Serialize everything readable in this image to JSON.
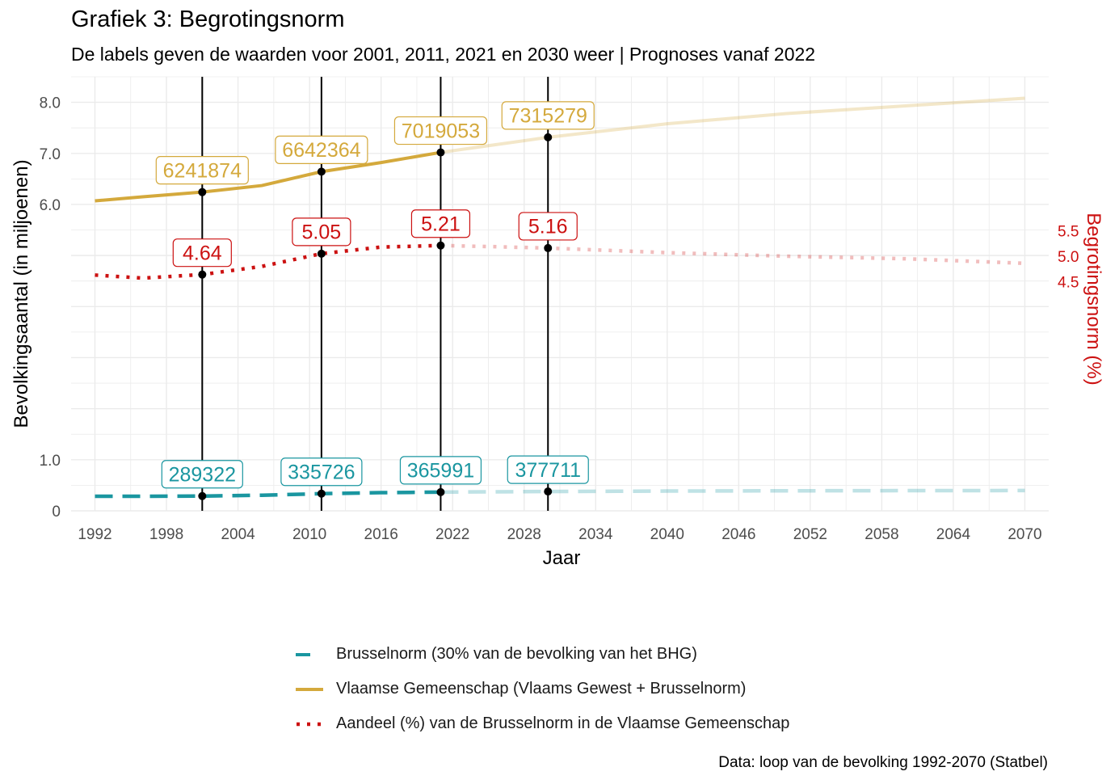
{
  "title": "Grafiek 3: Begrotingsnorm",
  "subtitle": "De labels geven de waarden voor 2001, 2011, 2021 en 2030 weer | Prognoses vanaf 2022",
  "caption": "Data: loop van de bevolking 1992-2070 (Statbel)",
  "colors": {
    "brussel": "#1a96a0",
    "vlaams": "#d4a93c",
    "aandeel": "#cc1111",
    "vline": "#000000",
    "grid": "#ebebeb"
  },
  "legend": [
    {
      "key": "brussel",
      "label": "Brusselnorm (30% van de bevolking van het BHG)",
      "style": "dashed"
    },
    {
      "key": "vlaams",
      "label": "Vlaamse Gemeenschap (Vlaams Gewest + Brusselnorm)",
      "style": "solid"
    },
    {
      "key": "aandeel",
      "label": "Aandeel (%) van de Brusselnorm in de Vlaamse Gemeenschap",
      "style": "dotted"
    }
  ],
  "chart_data": {
    "type": "line",
    "xlabel": "Jaar",
    "ylabel": "Bevolkingsaantal (in miljoenen)",
    "y2label": "Begrotingsnorm (%)",
    "xlim": [
      1990,
      2072
    ],
    "ylim": [
      0,
      8.5
    ],
    "x_ticks": [
      1992,
      1998,
      2004,
      2010,
      2016,
      2022,
      2028,
      2034,
      2040,
      2046,
      2052,
      2058,
      2064,
      2070
    ],
    "y_ticks": [
      0,
      1.0,
      6.0,
      7.0,
      8.0
    ],
    "y_tick_labels": [
      "0",
      "1.0",
      "6.0",
      "7.0",
      "8.0"
    ],
    "y2_ticks": [
      4.5,
      5.0,
      5.5
    ],
    "y2_tick_labels": [
      "4.5",
      "5.0",
      "5.5"
    ],
    "projection_start": 2022,
    "highlight_years": [
      2001,
      2011,
      2021,
      2030
    ],
    "grid": true,
    "legend_position": "bottom",
    "series": [
      {
        "key": "brussel",
        "name": "Brusselnorm (30% van de bevolking van het BHG)",
        "axis": "left",
        "style": "dashed",
        "x": [
          1992,
          1996,
          2001,
          2006,
          2011,
          2016,
          2021,
          2025,
          2030,
          2040,
          2050,
          2060,
          2070
        ],
        "y": [
          0.285,
          0.285,
          0.289,
          0.305,
          0.336,
          0.356,
          0.366,
          0.372,
          0.378,
          0.387,
          0.392,
          0.395,
          0.397
        ]
      },
      {
        "key": "vlaams",
        "name": "Vlaamse Gemeenschap (Vlaams Gewest + Brusselnorm)",
        "axis": "left",
        "style": "solid",
        "x": [
          1992,
          1996,
          2001,
          2006,
          2011,
          2016,
          2021,
          2025,
          2030,
          2040,
          2050,
          2060,
          2070
        ],
        "y": [
          6.07,
          6.15,
          6.242,
          6.37,
          6.642,
          6.82,
          7.019,
          7.15,
          7.315,
          7.58,
          7.78,
          7.93,
          8.08
        ]
      },
      {
        "key": "aandeel",
        "name": "Aandeel (%) van de Brusselnorm in de Vlaamse Gemeenschap",
        "axis": "right",
        "style": "dotted",
        "x": [
          1992,
          1996,
          2001,
          2006,
          2011,
          2016,
          2021,
          2025,
          2030,
          2040,
          2050,
          2060,
          2070
        ],
        "y": [
          4.63,
          4.57,
          4.64,
          4.8,
          5.05,
          5.18,
          5.21,
          5.19,
          5.16,
          5.07,
          5.0,
          4.95,
          4.86
        ]
      }
    ],
    "labels": [
      {
        "series": "vlaams",
        "x": 2001,
        "y": 6.242,
        "text": "6241874"
      },
      {
        "series": "vlaams",
        "x": 2011,
        "y": 6.642,
        "text": "6642364"
      },
      {
        "series": "vlaams",
        "x": 2021,
        "y": 7.019,
        "text": "7019053"
      },
      {
        "series": "vlaams",
        "x": 2030,
        "y": 7.315,
        "text": "7315279"
      },
      {
        "series": "aandeel",
        "x": 2001,
        "y": 4.64,
        "text": "4.64"
      },
      {
        "series": "aandeel",
        "x": 2011,
        "y": 5.05,
        "text": "5.05"
      },
      {
        "series": "aandeel",
        "x": 2021,
        "y": 5.21,
        "text": "5.21"
      },
      {
        "series": "aandeel",
        "x": 2030,
        "y": 5.16,
        "text": "5.16"
      },
      {
        "series": "brussel",
        "x": 2001,
        "y": 0.289,
        "text": "289322"
      },
      {
        "series": "brussel",
        "x": 2011,
        "y": 0.336,
        "text": "335726"
      },
      {
        "series": "brussel",
        "x": 2021,
        "y": 0.366,
        "text": "365991"
      },
      {
        "series": "brussel",
        "x": 2030,
        "y": 0.378,
        "text": "377711"
      }
    ]
  }
}
